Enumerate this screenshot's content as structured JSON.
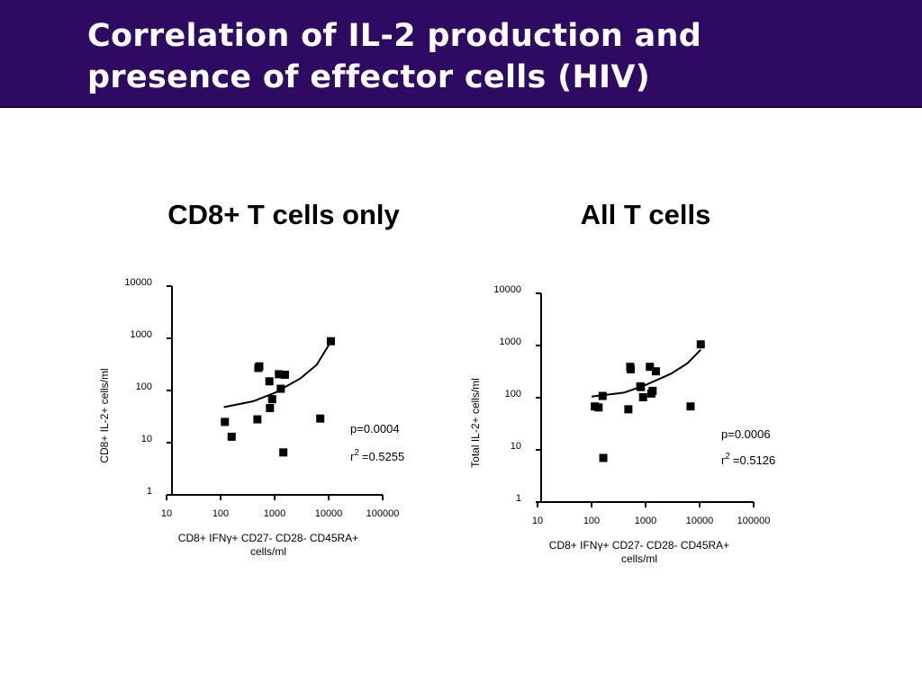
{
  "slide": {
    "title": "Correlation of IL-2 production and\npresence of effector cells (HIV)",
    "header_color": "#2e0a63"
  },
  "chart_data": [
    {
      "type": "scatter",
      "title": "CD8+ T cells only",
      "xlabel_line1": "CD8+ IFNγ+ CD27- CD28- CD45RA+",
      "xlabel_line2": "cells/ml",
      "ylabel": "CD8+ IL-2+ cells/ml",
      "x_scale": "log",
      "y_scale": "log",
      "xlim": [
        10,
        100000
      ],
      "ylim": [
        1,
        10000
      ],
      "x_ticks": [
        "10",
        "100",
        "1000",
        "10000",
        "100000"
      ],
      "y_ticks": [
        "1",
        "10",
        "100",
        "1000",
        "10000"
      ],
      "points": [
        {
          "x": 120,
          "y": 25
        },
        {
          "x": 160,
          "y": 13
        },
        {
          "x": 480,
          "y": 28
        },
        {
          "x": 500,
          "y": 270
        },
        {
          "x": 520,
          "y": 290
        },
        {
          "x": 800,
          "y": 150
        },
        {
          "x": 820,
          "y": 46
        },
        {
          "x": 900,
          "y": 68
        },
        {
          "x": 1200,
          "y": 205
        },
        {
          "x": 1300,
          "y": 108
        },
        {
          "x": 1450,
          "y": 6.5
        },
        {
          "x": 1550,
          "y": 200
        },
        {
          "x": 7000,
          "y": 29
        },
        {
          "x": 11000,
          "y": 880
        }
      ],
      "fit_line": [
        {
          "x": 115,
          "y": 48
        },
        {
          "x": 400,
          "y": 62
        },
        {
          "x": 1000,
          "y": 90
        },
        {
          "x": 3000,
          "y": 170
        },
        {
          "x": 6000,
          "y": 310
        },
        {
          "x": 10500,
          "y": 800
        }
      ],
      "p_value": "p=0.0004",
      "r2_prefix": "r",
      "r2_exp": "2",
      "r2_value": "=0.5255"
    },
    {
      "type": "scatter",
      "title": "All T cells",
      "xlabel_line1": "CD8+ IFNγ+ CD27- CD28- CD45RA+",
      "xlabel_line2": "cells/ml",
      "ylabel": "Total IL-2+ cells/ml",
      "x_scale": "log",
      "y_scale": "log",
      "xlim": [
        10,
        100000
      ],
      "ylim": [
        1,
        10000
      ],
      "x_ticks": [
        "10",
        "100",
        "1000",
        "10000",
        "100000"
      ],
      "y_ticks": [
        "1",
        "10",
        "100",
        "1000",
        "10000"
      ],
      "points": [
        {
          "x": 115,
          "y": 68
        },
        {
          "x": 135,
          "y": 65
        },
        {
          "x": 160,
          "y": 108
        },
        {
          "x": 165,
          "y": 7
        },
        {
          "x": 480,
          "y": 60
        },
        {
          "x": 520,
          "y": 390
        },
        {
          "x": 530,
          "y": 350
        },
        {
          "x": 800,
          "y": 165
        },
        {
          "x": 820,
          "y": 160
        },
        {
          "x": 900,
          "y": 102
        },
        {
          "x": 1200,
          "y": 390
        },
        {
          "x": 1280,
          "y": 120
        },
        {
          "x": 1350,
          "y": 135
        },
        {
          "x": 1550,
          "y": 320
        },
        {
          "x": 6800,
          "y": 68
        },
        {
          "x": 10500,
          "y": 1050
        }
      ],
      "fit_line": [
        {
          "x": 100,
          "y": 105
        },
        {
          "x": 400,
          "y": 125
        },
        {
          "x": 1000,
          "y": 175
        },
        {
          "x": 3000,
          "y": 290
        },
        {
          "x": 6000,
          "y": 460
        },
        {
          "x": 10500,
          "y": 830
        }
      ],
      "p_value": "p=0.0006",
      "r2_prefix": "r",
      "r2_exp": "2",
      "r2_value": "=0.5126"
    }
  ]
}
